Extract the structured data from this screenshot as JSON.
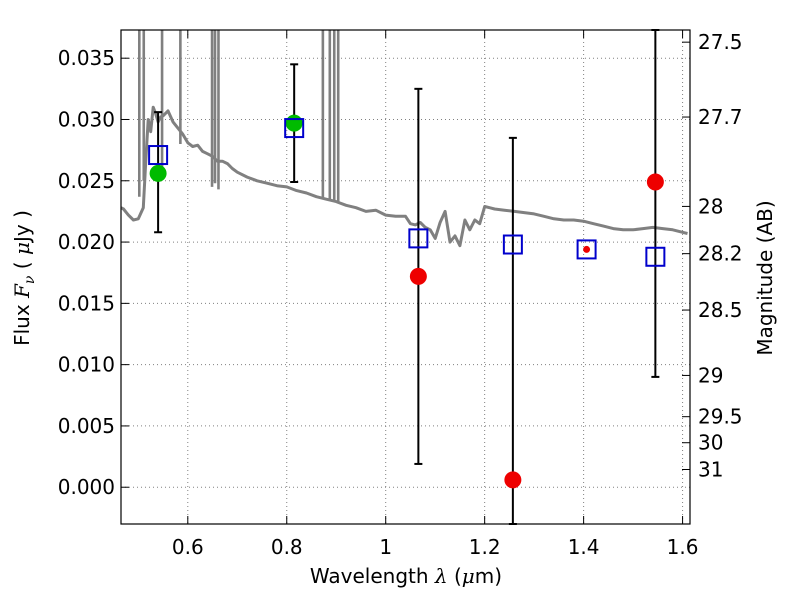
{
  "chart_data": {
    "type": "scatter",
    "xlabel_text": "Wavelength",
    "xlabel_symbol": "λ",
    "xlabel_unit_pre": " (",
    "xlabel_unit_mu": "μ",
    "xlabel_unit_post": "m)",
    "ylabel_text": "Flux",
    "ylabel_symbol": "F",
    "ylabel_symbol_sub": "ν",
    "ylabel_unit_pre": "( ",
    "ylabel_unit_mu": "μ",
    "ylabel_unit_post": "Jy )",
    "y2label": "Magnitude (AB)",
    "xlim": [
      0.465,
      1.615
    ],
    "ylim": [
      -0.003,
      0.0373
    ],
    "grid": true,
    "x_ticks": [
      0.6,
      0.8,
      1.0,
      1.2,
      1.4,
      1.6
    ],
    "x_tick_labels": [
      "0.6",
      "0.8",
      "1",
      "1.2",
      "1.4",
      "1.6"
    ],
    "y_ticks": [
      0.0,
      0.005,
      0.01,
      0.015,
      0.02,
      0.025,
      0.03,
      0.035
    ],
    "y_tick_labels": [
      "0.000",
      "0.005",
      "0.010",
      "0.015",
      "0.020",
      "0.025",
      "0.030",
      "0.035"
    ],
    "y2_ticks": [
      27.5,
      27.7,
      28,
      28.2,
      28.5,
      29,
      29.5,
      30,
      31
    ],
    "y2_tick_labels": [
      "27.5",
      "27.7",
      "28",
      "28.2",
      "28.5",
      "29",
      "29.5",
      "30",
      "31"
    ],
    "colors": {
      "spectrum": "#808080",
      "model": "#0000cc",
      "observed_red": "#ee0000",
      "observed_green": "#00bb00",
      "error": "#000000",
      "grid": "#808080"
    },
    "spectrum": {
      "x": [
        0.465,
        0.47,
        0.48,
        0.49,
        0.5,
        0.51,
        0.515,
        0.52,
        0.525,
        0.53,
        0.535,
        0.54,
        0.545,
        0.55,
        0.56,
        0.57,
        0.58,
        0.59,
        0.6,
        0.61,
        0.62,
        0.63,
        0.64,
        0.65,
        0.66,
        0.67,
        0.68,
        0.69,
        0.7,
        0.72,
        0.74,
        0.76,
        0.78,
        0.8,
        0.82,
        0.84,
        0.86,
        0.88,
        0.9,
        0.92,
        0.94,
        0.96,
        0.98,
        1.0,
        1.02,
        1.04,
        1.05,
        1.06,
        1.07,
        1.08,
        1.09,
        1.1,
        1.11,
        1.12,
        1.13,
        1.14,
        1.15,
        1.16,
        1.17,
        1.18,
        1.19,
        1.2,
        1.21,
        1.22,
        1.24,
        1.26,
        1.28,
        1.3,
        1.32,
        1.34,
        1.36,
        1.38,
        1.4,
        1.42,
        1.44,
        1.46,
        1.48,
        1.5,
        1.52,
        1.54,
        1.56,
        1.58,
        1.6,
        1.61
      ],
      "y": [
        0.0228,
        0.0227,
        0.0222,
        0.0218,
        0.0219,
        0.0228,
        0.0265,
        0.03,
        0.029,
        0.031,
        0.0305,
        0.0298,
        0.0302,
        0.0303,
        0.0307,
        0.0298,
        0.0293,
        0.0288,
        0.0281,
        0.0278,
        0.0279,
        0.0274,
        0.0272,
        0.027,
        0.0266,
        0.0266,
        0.0264,
        0.026,
        0.0257,
        0.0253,
        0.025,
        0.0248,
        0.0246,
        0.0245,
        0.0242,
        0.024,
        0.0237,
        0.0235,
        0.0233,
        0.023,
        0.0228,
        0.0225,
        0.0226,
        0.0222,
        0.0221,
        0.0221,
        0.0215,
        0.0214,
        0.0216,
        0.0212,
        0.021,
        0.0203,
        0.0216,
        0.0225,
        0.02,
        0.0205,
        0.0197,
        0.0218,
        0.021,
        0.0218,
        0.0215,
        0.0229,
        0.0228,
        0.0227,
        0.0226,
        0.0225,
        0.0224,
        0.0223,
        0.0221,
        0.0219,
        0.0218,
        0.0218,
        0.0217,
        0.0215,
        0.0213,
        0.0211,
        0.021,
        0.021,
        0.0211,
        0.0212,
        0.0211,
        0.021,
        0.0208,
        0.0207
      ]
    },
    "spectrum_spikes": [
      {
        "x": 0.502,
        "y": 0.0237
      },
      {
        "x": 0.511,
        "y": 0.025
      },
      {
        "x": 0.548,
        "y": 0.0252
      },
      {
        "x": 0.585,
        "y": 0.028
      },
      {
        "x": 0.649,
        "y": 0.0245
      },
      {
        "x": 0.655,
        "y": 0.0248
      },
      {
        "x": 0.662,
        "y": 0.0243
      },
      {
        "x": 0.873,
        "y": 0.0236
      },
      {
        "x": 0.887,
        "y": 0.0234
      },
      {
        "x": 0.896,
        "y": 0.0233
      },
      {
        "x": 0.904,
        "y": 0.0232
      }
    ],
    "spike_top": 0.0373,
    "model_points": {
      "x": [
        0.54,
        0.815,
        1.066,
        1.257,
        1.406,
        1.545
      ],
      "y": [
        0.0271,
        0.0293,
        0.0203,
        0.0198,
        0.0194,
        0.0188
      ]
    },
    "observed_points": [
      {
        "x": 0.54,
        "y": 0.0256,
        "err_low": 0.0208,
        "err_high": 0.0306,
        "color": "green"
      },
      {
        "x": 0.815,
        "y": 0.0297,
        "err_low": 0.0249,
        "err_high": 0.0345,
        "color": "green"
      },
      {
        "x": 1.066,
        "y": 0.0172,
        "err_low": 0.0019,
        "err_high": 0.0325,
        "color": "red"
      },
      {
        "x": 1.257,
        "y": 0.0006,
        "err_low": -0.003,
        "err_high": 0.0285,
        "color": "red"
      },
      {
        "x": 1.406,
        "y": 0.0194,
        "err_low": null,
        "err_high": null,
        "color": "red-small"
      },
      {
        "x": 1.545,
        "y": 0.0249,
        "err_low": 0.009,
        "err_high": 0.0373,
        "color": "red"
      }
    ]
  }
}
